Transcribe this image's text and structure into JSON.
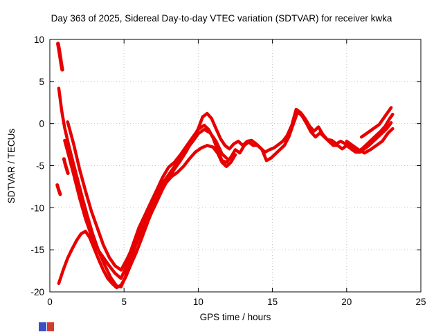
{
  "chart_data": {
    "type": "scatter",
    "title": "Day 363 of 2025, Sidereal Day-to-day VTEC variation (SDTVAR) for receiver kwka",
    "xlabel": "GPS time / hours",
    "ylabel": "SDTVAR / TECUs",
    "xlim": [
      0,
      25
    ],
    "ylim": [
      -20,
      10
    ],
    "xticks": [
      0,
      5,
      10,
      15,
      20,
      25
    ],
    "yticks": [
      -20,
      -15,
      -10,
      -5,
      0,
      5,
      10
    ],
    "grid": true,
    "point_color": "#e60000",
    "series": [
      {
        "name": "trace-1",
        "w": 4.5,
        "points": [
          [
            0.6,
            4.2
          ],
          [
            0.8,
            1.5
          ],
          [
            1.0,
            -0.5
          ],
          [
            1.3,
            -2.8
          ],
          [
            1.7,
            -5.5
          ],
          [
            2.1,
            -8.2
          ],
          [
            2.5,
            -10.8
          ],
          [
            2.9,
            -13.2
          ],
          [
            3.3,
            -15.2
          ],
          [
            3.7,
            -16.8
          ],
          [
            4.1,
            -18.3
          ],
          [
            4.5,
            -19.3
          ],
          [
            4.8,
            -19.4
          ],
          [
            5.1,
            -18.2
          ],
          [
            5.4,
            -16.5
          ],
          [
            5.7,
            -14.8
          ],
          [
            6.0,
            -13.5
          ],
          [
            6.4,
            -12.2
          ],
          [
            6.8,
            -10.8
          ],
          [
            7.2,
            -9.3
          ],
          [
            7.6,
            -7.8
          ],
          [
            8.0,
            -6.5
          ],
          [
            8.4,
            -5.4
          ],
          [
            8.8,
            -4.4
          ],
          [
            9.2,
            -3.3
          ],
          [
            9.6,
            -2.0
          ],
          [
            10.0,
            -0.6
          ],
          [
            10.3,
            0.8
          ],
          [
            10.6,
            1.2
          ],
          [
            10.9,
            0.6
          ],
          [
            11.2,
            -0.6
          ],
          [
            11.5,
            -1.8
          ],
          [
            11.8,
            -2.6
          ],
          [
            12.1,
            -3.0
          ],
          [
            12.4,
            -2.4
          ],
          [
            12.7,
            -2.1
          ],
          [
            13.0,
            -2.6
          ],
          [
            13.3,
            -2.1
          ],
          [
            13.6,
            -2.0
          ],
          [
            13.9,
            -2.4
          ],
          [
            14.2,
            -2.9
          ],
          [
            14.5,
            -3.4
          ],
          [
            14.8,
            -3.1
          ],
          [
            15.1,
            -2.9
          ],
          [
            15.4,
            -2.5
          ],
          [
            15.7,
            -2.1
          ],
          [
            16.0,
            -1.4
          ],
          [
            16.3,
            -0.2
          ],
          [
            16.6,
            1.7
          ],
          [
            16.9,
            1.3
          ],
          [
            17.2,
            0.6
          ],
          [
            17.5,
            -0.3
          ],
          [
            17.8,
            -0.9
          ],
          [
            18.1,
            -0.4
          ],
          [
            18.4,
            -1.3
          ],
          [
            18.7,
            -1.9
          ],
          [
            19.0,
            -2.0
          ],
          [
            19.3,
            -2.4
          ],
          [
            19.6,
            -2.1
          ],
          [
            19.9,
            -2.4
          ],
          [
            20.2,
            -2.6
          ],
          [
            20.5,
            -3.0
          ],
          [
            20.8,
            -3.3
          ],
          [
            21.1,
            -2.9
          ],
          [
            21.4,
            -2.4
          ],
          [
            21.7,
            -1.9
          ],
          [
            22.0,
            -1.4
          ],
          [
            22.3,
            -0.9
          ],
          [
            22.6,
            -0.3
          ],
          [
            22.9,
            0.6
          ],
          [
            23.1,
            1.1
          ]
        ]
      },
      {
        "name": "trace-2",
        "w": 4.5,
        "points": [
          [
            1.0,
            -2.0
          ],
          [
            1.3,
            -4.0
          ],
          [
            1.6,
            -6.0
          ],
          [
            2.0,
            -8.8
          ],
          [
            2.4,
            -11.3
          ],
          [
            2.8,
            -13.3
          ],
          [
            3.2,
            -14.9
          ],
          [
            3.6,
            -15.9
          ],
          [
            4.0,
            -16.9
          ],
          [
            4.4,
            -17.8
          ],
          [
            4.8,
            -18.4
          ],
          [
            5.1,
            -17.2
          ],
          [
            5.4,
            -15.4
          ],
          [
            5.7,
            -13.9
          ],
          [
            6.0,
            -12.4
          ],
          [
            6.4,
            -10.9
          ],
          [
            6.8,
            -9.4
          ],
          [
            7.2,
            -7.9
          ],
          [
            7.6,
            -6.4
          ],
          [
            8.0,
            -5.2
          ],
          [
            8.4,
            -4.6
          ],
          [
            8.8,
            -3.7
          ],
          [
            9.2,
            -2.7
          ],
          [
            9.6,
            -1.7
          ],
          [
            10.0,
            -0.7
          ],
          [
            10.4,
            -0.2
          ],
          [
            10.7,
            -0.7
          ],
          [
            11.0,
            -1.7
          ],
          [
            11.3,
            -3.1
          ],
          [
            11.6,
            -4.4
          ],
          [
            11.9,
            -4.6
          ],
          [
            12.2,
            -4.0
          ],
          [
            12.5,
            -3.1
          ],
          [
            12.8,
            -3.5
          ],
          [
            13.1,
            -2.6
          ],
          [
            13.4,
            -2.2
          ],
          [
            13.7,
            -2.6
          ],
          [
            14.0,
            -2.6
          ],
          [
            14.3,
            -3.1
          ],
          [
            14.6,
            -4.4
          ],
          [
            14.9,
            -4.1
          ],
          [
            15.2,
            -3.6
          ],
          [
            15.5,
            -3.1
          ],
          [
            15.8,
            -2.6
          ],
          [
            16.1,
            -1.6
          ],
          [
            16.4,
            -0.1
          ],
          [
            16.7,
            1.4
          ],
          [
            17.0,
            0.9
          ],
          [
            17.3,
            0.0
          ],
          [
            17.6,
            -1.0
          ],
          [
            17.9,
            -1.6
          ],
          [
            18.2,
            -1.1
          ],
          [
            18.5,
            -1.6
          ],
          [
            18.8,
            -2.1
          ],
          [
            19.1,
            -2.6
          ],
          [
            19.4,
            -2.6
          ],
          [
            19.7,
            -3.0
          ],
          [
            20.0,
            -2.6
          ],
          [
            20.3,
            -3.0
          ],
          [
            20.6,
            -3.4
          ],
          [
            20.9,
            -3.4
          ],
          [
            21.2,
            -3.0
          ],
          [
            21.5,
            -2.6
          ],
          [
            21.8,
            -2.1
          ],
          [
            22.1,
            -1.6
          ],
          [
            22.4,
            -1.1
          ],
          [
            22.7,
            -0.6
          ],
          [
            23.0,
            0.1
          ]
        ]
      },
      {
        "name": "trace-3",
        "w": 4.5,
        "points": [
          [
            0.6,
            -19.0
          ],
          [
            0.9,
            -17.4
          ],
          [
            1.2,
            -16.0
          ],
          [
            1.5,
            -14.9
          ],
          [
            1.8,
            -13.9
          ],
          [
            2.1,
            -13.1
          ],
          [
            2.4,
            -12.8
          ],
          [
            2.7,
            -13.6
          ],
          [
            3.0,
            -14.9
          ],
          [
            3.3,
            -16.2
          ],
          [
            3.6,
            -17.4
          ],
          [
            3.9,
            -18.4
          ],
          [
            4.2,
            -19.0
          ],
          [
            4.5,
            -19.5
          ],
          [
            4.8,
            -19.2
          ],
          [
            5.1,
            -18.3
          ],
          [
            5.4,
            -17.0
          ],
          [
            5.8,
            -15.4
          ],
          [
            6.2,
            -13.6
          ],
          [
            6.6,
            -11.7
          ],
          [
            7.0,
            -9.9
          ],
          [
            7.4,
            -8.3
          ],
          [
            7.8,
            -7.1
          ],
          [
            8.2,
            -6.3
          ],
          [
            8.6,
            -5.8
          ],
          [
            9.0,
            -5.1
          ],
          [
            9.4,
            -4.2
          ],
          [
            9.8,
            -3.4
          ],
          [
            10.2,
            -2.9
          ],
          [
            10.6,
            -2.6
          ],
          [
            11.0,
            -2.8
          ],
          [
            11.3,
            -3.5
          ],
          [
            11.6,
            -4.6
          ],
          [
            11.9,
            -5.1
          ],
          [
            12.2,
            -4.6
          ],
          [
            12.5,
            -3.7
          ]
        ]
      },
      {
        "name": "trace-4",
        "w": 4.5,
        "points": [
          [
            1.2,
            0.2
          ],
          [
            1.6,
            -2.4
          ],
          [
            2.0,
            -5.4
          ],
          [
            2.4,
            -8.0
          ],
          [
            2.8,
            -10.4
          ],
          [
            3.2,
            -12.4
          ],
          [
            3.6,
            -14.4
          ],
          [
            4.0,
            -15.9
          ],
          [
            4.4,
            -16.9
          ],
          [
            4.8,
            -17.4
          ],
          [
            5.2,
            -16.1
          ],
          [
            5.6,
            -14.6
          ],
          [
            6.0,
            -13.1
          ],
          [
            6.4,
            -11.6
          ],
          [
            6.8,
            -10.1
          ],
          [
            7.2,
            -8.6
          ],
          [
            7.6,
            -7.1
          ],
          [
            8.0,
            -6.1
          ],
          [
            8.4,
            -5.1
          ],
          [
            8.8,
            -4.1
          ],
          [
            9.2,
            -3.1
          ],
          [
            9.6,
            -2.2
          ],
          [
            10.0,
            -1.2
          ],
          [
            10.4,
            -0.7
          ],
          [
            10.8,
            -1.1
          ],
          [
            11.2,
            -2.1
          ],
          [
            11.6,
            -3.6
          ],
          [
            11.9,
            -4.1
          ]
        ]
      },
      {
        "name": "trace-5-steep-topleft",
        "w": 5.5,
        "points": [
          [
            0.55,
            9.5
          ],
          [
            0.62,
            8.8
          ],
          [
            0.7,
            7.9
          ],
          [
            0.78,
            7.0
          ],
          [
            0.84,
            6.4
          ]
        ]
      },
      {
        "name": "trace-6-short-left",
        "w": 5,
        "points": [
          [
            0.5,
            -7.3
          ],
          [
            0.6,
            -7.9
          ],
          [
            0.7,
            -8.4
          ]
        ]
      },
      {
        "name": "trace-7-short-left",
        "w": 5,
        "points": [
          [
            0.95,
            -4.2
          ],
          [
            1.05,
            -4.9
          ],
          [
            1.15,
            -5.5
          ],
          [
            1.22,
            -5.9
          ]
        ]
      },
      {
        "name": "trace-8-right-upper",
        "w": 4.5,
        "points": [
          [
            21.0,
            -1.6
          ],
          [
            21.4,
            -1.1
          ],
          [
            21.8,
            -0.6
          ],
          [
            22.2,
            -0.1
          ],
          [
            22.6,
            0.9
          ],
          [
            23.0,
            1.9
          ]
        ]
      },
      {
        "name": "trace-9-right-lower",
        "w": 4.5,
        "points": [
          [
            20.0,
            -2.1
          ],
          [
            20.4,
            -2.6
          ],
          [
            20.8,
            -3.1
          ],
          [
            21.2,
            -3.5
          ],
          [
            21.6,
            -3.1
          ],
          [
            22.0,
            -2.6
          ],
          [
            22.4,
            -2.1
          ],
          [
            22.8,
            -1.1
          ],
          [
            23.1,
            -0.6
          ]
        ]
      }
    ]
  },
  "corner_icon": {
    "blue": "#3a4fc4",
    "red": "#d23b2f"
  }
}
